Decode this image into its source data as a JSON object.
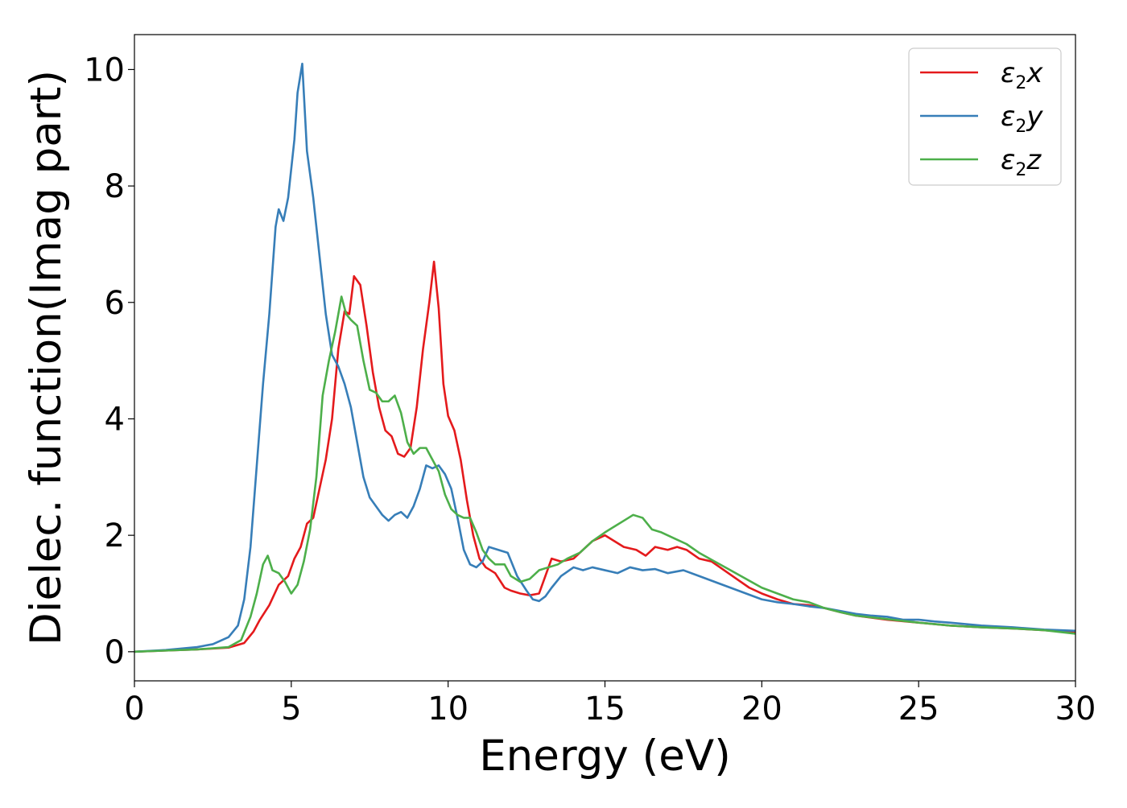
{
  "chart_data": {
    "type": "line",
    "title": "",
    "xlabel": "Energy (eV)",
    "ylabel": "Dielec. function(Imag part)",
    "xlim": [
      0,
      30
    ],
    "ylim": [
      -0.5,
      10.6
    ],
    "xticks": [
      0,
      5,
      10,
      15,
      20,
      25,
      30
    ],
    "xtick_labels": [
      "0",
      "5",
      "10",
      "15",
      "20",
      "25",
      "30"
    ],
    "yticks": [
      0,
      2,
      4,
      6,
      8,
      10
    ],
    "ytick_labels": [
      "0",
      "2",
      "4",
      "6",
      "8",
      "10"
    ],
    "grid": false,
    "legend_position": "top-right",
    "series": [
      {
        "name": "ε2x",
        "legend_main": "ε",
        "legend_sub": "2",
        "legend_tail": "x",
        "color": "#e41a1c",
        "x": [
          0,
          1,
          2,
          3,
          3.5,
          3.8,
          4.0,
          4.3,
          4.6,
          4.9,
          5.1,
          5.3,
          5.5,
          5.7,
          5.9,
          6.1,
          6.3,
          6.5,
          6.7,
          6.85,
          7.0,
          7.2,
          7.4,
          7.6,
          7.8,
          8.0,
          8.2,
          8.4,
          8.6,
          8.8,
          9.0,
          9.2,
          9.4,
          9.55,
          9.7,
          9.85,
          10.0,
          10.2,
          10.4,
          10.6,
          10.8,
          11.0,
          11.2,
          11.5,
          11.8,
          12.0,
          12.3,
          12.6,
          12.9,
          13.1,
          13.3,
          13.6,
          14.0,
          14.3,
          14.6,
          15.0,
          15.3,
          15.6,
          16.0,
          16.3,
          16.6,
          17.0,
          17.3,
          17.6,
          18.0,
          18.4,
          18.8,
          19.2,
          19.6,
          20.0,
          20.5,
          21.0,
          21.5,
          22.0,
          22.5,
          23.0,
          24.0,
          25.0,
          26.0,
          27.0,
          28.0,
          29.0,
          30.0
        ],
        "y": [
          0.0,
          0.02,
          0.04,
          0.07,
          0.15,
          0.35,
          0.55,
          0.8,
          1.15,
          1.3,
          1.6,
          1.8,
          2.2,
          2.3,
          2.8,
          3.3,
          4.0,
          5.2,
          5.85,
          5.8,
          6.45,
          6.3,
          5.6,
          4.8,
          4.2,
          3.8,
          3.7,
          3.4,
          3.35,
          3.5,
          4.2,
          5.2,
          6.0,
          6.7,
          5.9,
          4.6,
          4.05,
          3.8,
          3.3,
          2.6,
          2.0,
          1.6,
          1.45,
          1.35,
          1.1,
          1.05,
          1.0,
          0.97,
          1.0,
          1.3,
          1.6,
          1.55,
          1.6,
          1.75,
          1.9,
          2.0,
          1.9,
          1.8,
          1.75,
          1.65,
          1.8,
          1.75,
          1.8,
          1.75,
          1.6,
          1.55,
          1.4,
          1.25,
          1.1,
          1.0,
          0.9,
          0.82,
          0.8,
          0.75,
          0.68,
          0.62,
          0.55,
          0.5,
          0.45,
          0.42,
          0.4,
          0.37,
          0.33
        ]
      },
      {
        "name": "ε2y",
        "legend_main": "ε",
        "legend_sub": "2",
        "legend_tail": "y",
        "color": "#377eb8",
        "x": [
          0,
          1,
          2,
          2.5,
          3.0,
          3.3,
          3.5,
          3.7,
          3.9,
          4.1,
          4.3,
          4.5,
          4.6,
          4.75,
          4.9,
          5.1,
          5.2,
          5.35,
          5.5,
          5.7,
          5.9,
          6.1,
          6.3,
          6.5,
          6.7,
          6.9,
          7.1,
          7.3,
          7.5,
          7.7,
          7.9,
          8.1,
          8.3,
          8.5,
          8.7,
          8.9,
          9.1,
          9.3,
          9.5,
          9.7,
          9.9,
          10.1,
          10.3,
          10.5,
          10.7,
          10.9,
          11.1,
          11.3,
          11.6,
          11.9,
          12.2,
          12.5,
          12.7,
          12.9,
          13.1,
          13.3,
          13.6,
          14.0,
          14.3,
          14.6,
          15.0,
          15.4,
          15.8,
          16.2,
          16.6,
          17.0,
          17.5,
          18.0,
          18.5,
          19.0,
          19.5,
          20.0,
          20.5,
          21.0,
          21.5,
          22.0,
          22.5,
          23.0,
          23.5,
          24.0,
          24.5,
          25.0,
          25.5,
          26.0,
          27.0,
          28.0,
          29.0,
          30.0
        ],
        "y": [
          0.0,
          0.03,
          0.08,
          0.13,
          0.25,
          0.45,
          0.9,
          1.8,
          3.2,
          4.6,
          5.8,
          7.3,
          7.6,
          7.4,
          7.8,
          8.8,
          9.6,
          10.1,
          8.6,
          7.8,
          6.8,
          5.8,
          5.1,
          4.9,
          4.6,
          4.2,
          3.6,
          3.0,
          2.65,
          2.5,
          2.35,
          2.25,
          2.35,
          2.4,
          2.3,
          2.5,
          2.8,
          3.2,
          3.15,
          3.2,
          3.05,
          2.8,
          2.3,
          1.75,
          1.5,
          1.45,
          1.55,
          1.8,
          1.75,
          1.7,
          1.3,
          1.05,
          0.9,
          0.87,
          0.95,
          1.1,
          1.3,
          1.45,
          1.4,
          1.45,
          1.4,
          1.35,
          1.45,
          1.4,
          1.42,
          1.35,
          1.4,
          1.3,
          1.2,
          1.1,
          1.0,
          0.9,
          0.85,
          0.82,
          0.78,
          0.75,
          0.7,
          0.65,
          0.62,
          0.6,
          0.55,
          0.55,
          0.52,
          0.5,
          0.45,
          0.42,
          0.38,
          0.36
        ]
      },
      {
        "name": "ε2z",
        "legend_main": "ε",
        "legend_sub": "2",
        "legend_tail": "z",
        "color": "#4daf4a",
        "x": [
          0,
          1,
          2,
          3,
          3.4,
          3.7,
          3.9,
          4.1,
          4.25,
          4.4,
          4.6,
          4.8,
          5.0,
          5.2,
          5.4,
          5.6,
          5.8,
          6.0,
          6.2,
          6.4,
          6.6,
          6.75,
          6.9,
          7.1,
          7.3,
          7.5,
          7.7,
          7.9,
          8.1,
          8.3,
          8.5,
          8.7,
          8.9,
          9.1,
          9.3,
          9.5,
          9.7,
          9.9,
          10.1,
          10.3,
          10.5,
          10.7,
          10.9,
          11.1,
          11.3,
          11.5,
          11.8,
          12.0,
          12.3,
          12.6,
          12.9,
          13.2,
          13.5,
          13.8,
          14.2,
          14.6,
          15.0,
          15.3,
          15.6,
          15.9,
          16.2,
          16.5,
          16.8,
          17.2,
          17.6,
          18.0,
          18.5,
          19.0,
          19.5,
          20.0,
          20.5,
          21.0,
          21.5,
          22.0,
          22.5,
          23.0,
          24.0,
          25.0,
          26.0,
          27.0,
          28.0,
          29.0,
          30.0
        ],
        "y": [
          0.0,
          0.02,
          0.04,
          0.08,
          0.2,
          0.6,
          1.0,
          1.5,
          1.65,
          1.4,
          1.35,
          1.2,
          1.0,
          1.15,
          1.55,
          2.1,
          3.0,
          4.4,
          5.0,
          5.5,
          6.1,
          5.8,
          5.7,
          5.6,
          5.0,
          4.5,
          4.45,
          4.3,
          4.3,
          4.4,
          4.1,
          3.6,
          3.4,
          3.5,
          3.5,
          3.3,
          3.1,
          2.7,
          2.45,
          2.35,
          2.3,
          2.3,
          2.05,
          1.75,
          1.6,
          1.5,
          1.5,
          1.3,
          1.2,
          1.25,
          1.4,
          1.45,
          1.5,
          1.6,
          1.7,
          1.9,
          2.05,
          2.15,
          2.25,
          2.35,
          2.3,
          2.1,
          2.05,
          1.95,
          1.85,
          1.7,
          1.55,
          1.4,
          1.25,
          1.1,
          1.0,
          0.9,
          0.85,
          0.75,
          0.68,
          0.62,
          0.56,
          0.5,
          0.45,
          0.42,
          0.4,
          0.37,
          0.31
        ]
      }
    ]
  }
}
